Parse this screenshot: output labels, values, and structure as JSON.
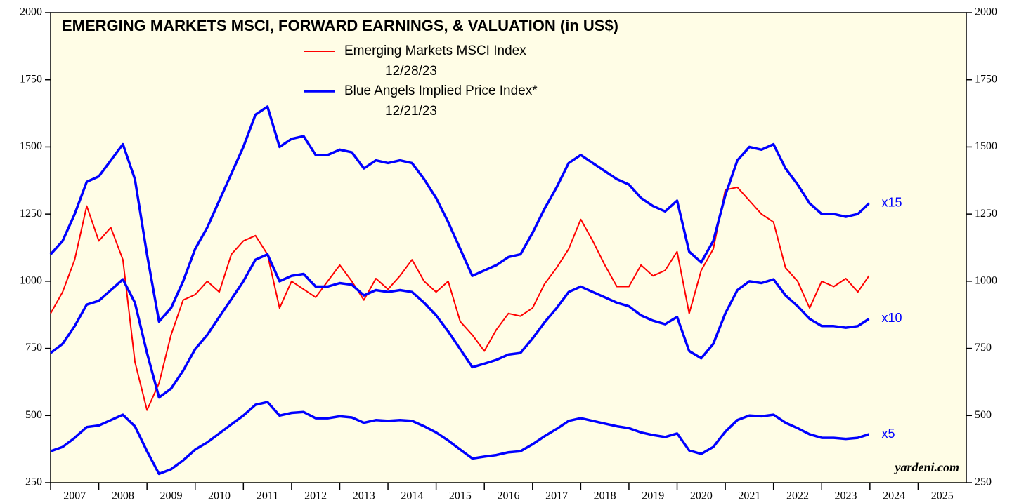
{
  "chart_data": {
    "type": "line",
    "title": "EMERGING MARKETS MSCI, FORWARD EARNINGS, & VALUATION (in US$)",
    "source": "yardeni.com",
    "xlim": [
      2007,
      2026
    ],
    "xticks": [
      2007,
      2008,
      2009,
      2010,
      2011,
      2012,
      2013,
      2014,
      2015,
      2016,
      2017,
      2018,
      2019,
      2020,
      2021,
      2022,
      2023,
      2024,
      2025
    ],
    "ylim": [
      250,
      2000
    ],
    "yticks": [
      250,
      500,
      750,
      1000,
      1250,
      1500,
      1750,
      2000
    ],
    "x": [
      2007,
      2007.25,
      2007.5,
      2007.75,
      2008,
      2008.25,
      2008.5,
      2008.75,
      2009,
      2009.25,
      2009.5,
      2009.75,
      2010,
      2010.25,
      2010.5,
      2010.75,
      2011,
      2011.25,
      2011.5,
      2011.75,
      2012,
      2012.25,
      2012.5,
      2012.75,
      2013,
      2013.25,
      2013.5,
      2013.75,
      2014,
      2014.25,
      2014.5,
      2014.75,
      2015,
      2015.25,
      2015.5,
      2015.75,
      2016,
      2016.25,
      2016.5,
      2016.75,
      2017,
      2017.25,
      2017.5,
      2017.75,
      2018,
      2018.25,
      2018.5,
      2018.75,
      2019,
      2019.25,
      2019.5,
      2019.75,
      2020,
      2020.25,
      2020.5,
      2020.75,
      2021,
      2021.25,
      2021.5,
      2021.75,
      2022,
      2022.25,
      2022.5,
      2022.75,
      2023,
      2023.25,
      2023.5,
      2023.75,
      2023.98
    ],
    "series": [
      {
        "name": "Emerging Markets MSCI Index",
        "date": "12/28/23",
        "color": "#ff0000",
        "width": 2,
        "values": [
          880,
          960,
          1080,
          1280,
          1150,
          1200,
          1080,
          700,
          520,
          620,
          800,
          930,
          950,
          1000,
          960,
          1100,
          1150,
          1170,
          1100,
          900,
          1000,
          970,
          940,
          1000,
          1060,
          1000,
          930,
          1010,
          970,
          1020,
          1080,
          1000,
          960,
          1000,
          850,
          800,
          740,
          820,
          880,
          870,
          900,
          990,
          1050,
          1120,
          1230,
          1150,
          1060,
          980,
          980,
          1060,
          1020,
          1040,
          1110,
          880,
          1040,
          1120,
          1340,
          1350,
          1300,
          1250,
          1220,
          1050,
          1000,
          900,
          1000,
          980,
          1010,
          960,
          1020
        ]
      },
      {
        "name": "Blue Angels Implied Price Index*",
        "date": "12/21/23",
        "end_label": "x15",
        "color": "#0000ff",
        "width": 3.5,
        "values": [
          1100,
          1150,
          1250,
          1370,
          1390,
          1450,
          1510,
          1380,
          1100,
          850,
          900,
          1000,
          1120,
          1200,
          1300,
          1400,
          1500,
          1620,
          1650,
          1500,
          1530,
          1540,
          1470,
          1470,
          1490,
          1480,
          1420,
          1450,
          1440,
          1450,
          1440,
          1380,
          1310,
          1220,
          1120,
          1020,
          1040,
          1060,
          1090,
          1100,
          1180,
          1270,
          1350,
          1440,
          1470,
          1440,
          1410,
          1380,
          1360,
          1310,
          1280,
          1260,
          1300,
          1110,
          1070,
          1150,
          1320,
          1450,
          1500,
          1490,
          1510,
          1420,
          1360,
          1290,
          1250,
          1250,
          1240,
          1250,
          1290
        ]
      },
      {
        "end_label": "x10",
        "color": "#0000ff",
        "width": 3.5,
        "values": [
          733,
          767,
          833,
          913,
          927,
          967,
          1007,
          920,
          733,
          567,
          600,
          667,
          747,
          800,
          867,
          933,
          1000,
          1080,
          1100,
          1000,
          1020,
          1027,
          980,
          980,
          993,
          987,
          947,
          967,
          960,
          967,
          960,
          920,
          873,
          813,
          747,
          680,
          693,
          707,
          727,
          733,
          787,
          847,
          900,
          960,
          980,
          960,
          940,
          920,
          907,
          873,
          853,
          840,
          867,
          740,
          713,
          767,
          880,
          967,
          1000,
          993,
          1007,
          947,
          907,
          860,
          833,
          833,
          827,
          833,
          860
        ]
      },
      {
        "end_label": "x5",
        "color": "#0000ff",
        "width": 3.5,
        "values": [
          367,
          383,
          417,
          457,
          463,
          483,
          503,
          460,
          367,
          283,
          300,
          333,
          373,
          400,
          433,
          467,
          500,
          540,
          550,
          500,
          510,
          513,
          490,
          490,
          497,
          493,
          473,
          483,
          480,
          483,
          480,
          460,
          437,
          407,
          373,
          340,
          347,
          353,
          363,
          367,
          393,
          423,
          450,
          480,
          490,
          480,
          470,
          460,
          453,
          437,
          427,
          420,
          433,
          370,
          357,
          383,
          440,
          483,
          500,
          497,
          503,
          473,
          453,
          430,
          417,
          417,
          413,
          417,
          430
        ]
      }
    ]
  }
}
